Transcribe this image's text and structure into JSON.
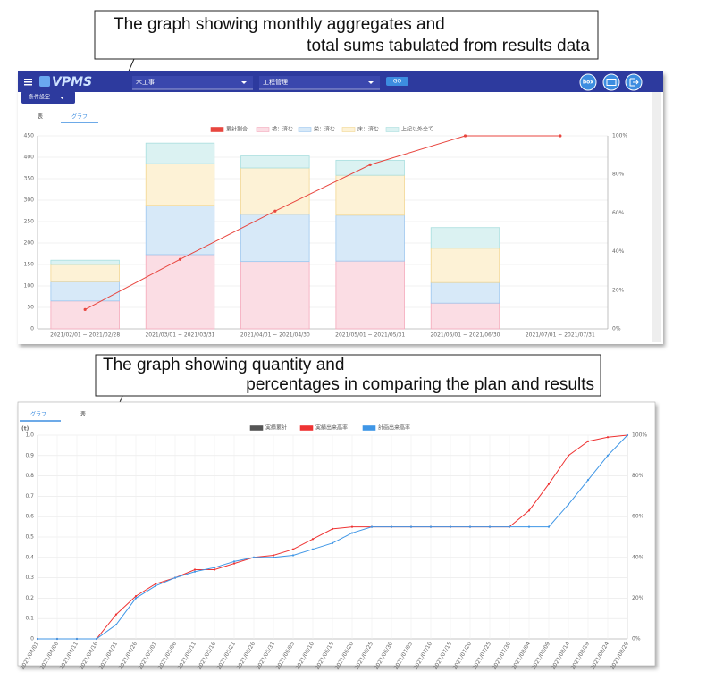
{
  "callouts": [
    {
      "lines": [
        "The graph showing monthly aggregates and",
        "total sums tabulated from results data"
      ]
    },
    {
      "lines": [
        "The graph showing quantity and",
        "percentages in comparing the plan and results"
      ]
    }
  ],
  "ui": {
    "logo": "VPMS",
    "select1": "木工事",
    "select2": "工程管理",
    "go": "GO",
    "box": "box",
    "condition": "条件設定",
    "tabs1": [
      "表",
      "グラフ"
    ],
    "tabs2": [
      "グラフ",
      "表"
    ]
  },
  "chart_data": [
    {
      "type": "bar",
      "categories": [
        "2021/02/01 ~ 2021/02/28",
        "2021/03/01 ~ 2021/03/31",
        "2021/04/01 ~ 2021/04/30",
        "2021/05/01 ~ 2021/05/31",
        "2021/06/01 ~ 2021/06/30",
        "2021/07/01 ~ 2021/07/31"
      ],
      "series": [
        {
          "name": "累計割合",
          "color": "#e8463f",
          "axis": "y2",
          "type": "line",
          "values": [
            10,
            36,
            61,
            85,
            100,
            100
          ]
        },
        {
          "name": "検：済む",
          "color": "#f4a7b9",
          "fill": "#fbdde4",
          "values": [
            65,
            173,
            157,
            158,
            60,
            null
          ]
        },
        {
          "name": "栄：済む",
          "color": "#9cc6ee",
          "fill": "#d7e9f8",
          "values": [
            45,
            115,
            110,
            107,
            48,
            null
          ]
        },
        {
          "name": "床：済む",
          "color": "#f2d690",
          "fill": "#fdf2d6",
          "values": [
            40,
            97,
            108,
            93,
            80,
            null
          ]
        },
        {
          "name": "上記以外全て",
          "color": "#a8dede",
          "fill": "#dbf2f2",
          "values": [
            10,
            48,
            28,
            35,
            48,
            null
          ]
        }
      ],
      "ylim": [
        0,
        450
      ],
      "yticks": [
        0,
        50,
        100,
        150,
        200,
        250,
        300,
        350,
        400,
        450
      ],
      "y2lim": [
        0,
        100
      ],
      "y2ticks": [
        {
          "value": 0,
          "label": "0%"
        },
        {
          "value": 20,
          "label": "20%"
        },
        {
          "value": 40,
          "label": "40%"
        },
        {
          "value": 60,
          "label": "60%"
        },
        {
          "value": 80,
          "label": "80%"
        },
        {
          "value": 100,
          "label": "100%"
        }
      ],
      "grid": true
    },
    {
      "type": "line",
      "y_label": "(t)",
      "categories": [
        "2021/04/01",
        "2021/04/06",
        "2021/04/11",
        "2021/04/16",
        "2021/04/21",
        "2021/04/26",
        "2021/05/01",
        "2021/05/06",
        "2021/05/11",
        "2021/05/16",
        "2021/05/21",
        "2021/05/26",
        "2021/05/31",
        "2021/06/05",
        "2021/06/10",
        "2021/06/15",
        "2021/06/20",
        "2021/06/25",
        "2021/06/30",
        "2021/07/05",
        "2021/07/10",
        "2021/07/15",
        "2021/07/20",
        "2021/07/25",
        "2021/07/30",
        "2021/08/04",
        "2021/08/09",
        "2021/08/14",
        "2021/08/19",
        "2021/08/24",
        "2021/08/29"
      ],
      "series": [
        {
          "name": "実績累計",
          "color": "#555555",
          "values": [
            null,
            null,
            null,
            null,
            null,
            null,
            null,
            null,
            null,
            null,
            null,
            null,
            null,
            null,
            null,
            null,
            null,
            null,
            null,
            null,
            null,
            null,
            null,
            null,
            null,
            null,
            null,
            null,
            null,
            null,
            null
          ]
        },
        {
          "name": "実績出来高率",
          "color": "#ee3333",
          "axis": "y2",
          "values": [
            0,
            0,
            0,
            0,
            12,
            21,
            27,
            30,
            34,
            34,
            37,
            40,
            41,
            44,
            49,
            54,
            55,
            55,
            55,
            55,
            55,
            55,
            55,
            55,
            55,
            63,
            76,
            90,
            97,
            99,
            100
          ]
        },
        {
          "name": "計画出来高率",
          "color": "#3f96e6",
          "axis": "y2",
          "values": [
            0,
            0,
            0,
            0,
            7,
            20,
            26,
            30,
            33,
            35,
            38,
            40,
            40,
            41,
            44,
            47,
            52,
            55,
            55,
            55,
            55,
            55,
            55,
            55,
            55,
            55,
            55,
            66,
            78,
            90,
            100
          ]
        }
      ],
      "ylim": [
        0,
        1
      ],
      "yticks": [
        0,
        0.1,
        0.2,
        0.3,
        0.4,
        0.5,
        0.6,
        0.7,
        0.8,
        0.9,
        {
          "value": 1,
          "label": "1.0"
        }
      ],
      "y2lim": [
        0,
        100
      ],
      "y2ticks": [
        {
          "value": 0,
          "label": "0%"
        },
        {
          "value": 20,
          "label": "20%"
        },
        {
          "value": 40,
          "label": "40%"
        },
        {
          "value": 60,
          "label": "60%"
        },
        {
          "value": 80,
          "label": "80%"
        },
        {
          "value": 100,
          "label": "100%"
        }
      ],
      "grid": true
    }
  ]
}
